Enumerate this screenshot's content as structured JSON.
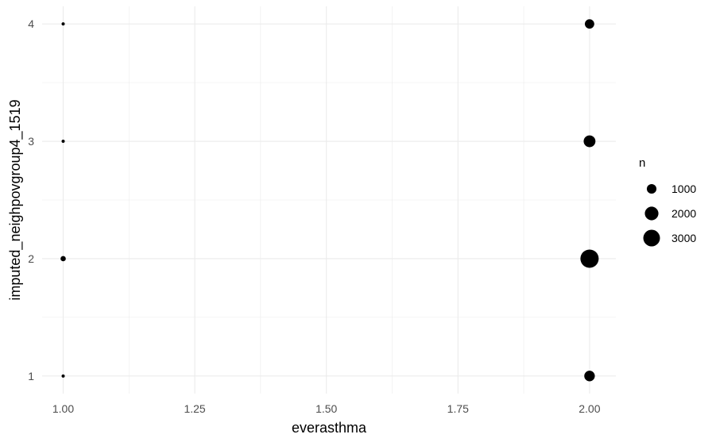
{
  "chart_data": {
    "type": "scatter",
    "xlabel": "everasthma",
    "ylabel": "imputed_neighpovgroup4_1519",
    "xlim": [
      0.96,
      2.05
    ],
    "ylim": [
      0.85,
      4.15
    ],
    "x_ticks": [
      1.0,
      1.25,
      1.5,
      1.75,
      2.0
    ],
    "x_tick_labels": [
      "1.00",
      "1.25",
      "1.50",
      "1.75",
      "2.00"
    ],
    "y_ticks": [
      1,
      2,
      3,
      4
    ],
    "y_tick_labels": [
      "1",
      "2",
      "3",
      "4"
    ],
    "grid": true,
    "points": [
      {
        "x": 1.0,
        "y": 1,
        "n": 30
      },
      {
        "x": 1.0,
        "y": 2,
        "n": 300
      },
      {
        "x": 1.0,
        "y": 3,
        "n": 100
      },
      {
        "x": 1.0,
        "y": 4,
        "n": 30
      },
      {
        "x": 2.0,
        "y": 1,
        "n": 1200
      },
      {
        "x": 2.0,
        "y": 2,
        "n": 3600
      },
      {
        "x": 2.0,
        "y": 3,
        "n": 1500
      },
      {
        "x": 2.0,
        "y": 4,
        "n": 950
      }
    ],
    "size_legend": {
      "title": "n",
      "position": "right",
      "values": [
        1000,
        2000,
        3000
      ],
      "labels": [
        "1000",
        "2000",
        "3000"
      ]
    },
    "point_color": "#000000",
    "grid_color": "#ebebeb"
  }
}
